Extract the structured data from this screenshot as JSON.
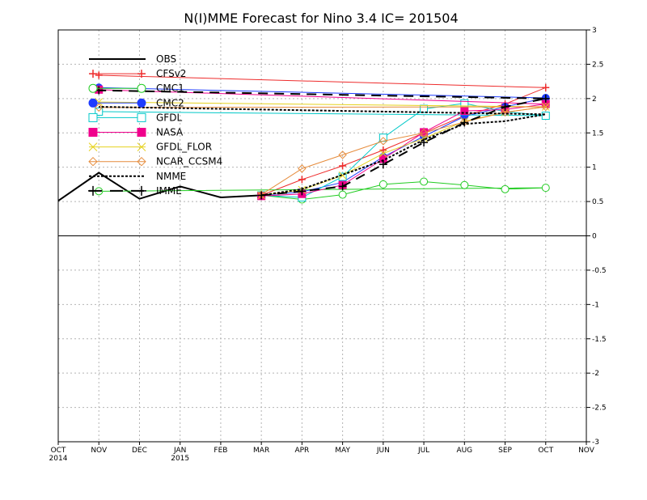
{
  "chart_data": {
    "type": "line",
    "title": "N(I)MME Forecast for Nino 3.4   IC= 201504",
    "x_tick_labels": [
      [
        "OCT",
        "2014"
      ],
      [
        "NOV",
        ""
      ],
      [
        "DEC",
        ""
      ],
      [
        "JAN",
        "2015"
      ],
      [
        "FEB",
        ""
      ],
      [
        "MAR",
        ""
      ],
      [
        "APR",
        ""
      ],
      [
        "MAY",
        ""
      ],
      [
        "JUN",
        ""
      ],
      [
        "JUL",
        ""
      ],
      [
        "AUG",
        ""
      ],
      [
        "SEP",
        ""
      ],
      [
        "OCT",
        ""
      ],
      [
        "NOV",
        ""
      ]
    ],
    "ylim": [
      -3,
      3
    ],
    "y_ticks": [
      -3,
      -2.5,
      -2,
      -1.5,
      -1,
      -0.5,
      0,
      0.5,
      1,
      1.5,
      2,
      2.5,
      3
    ],
    "y_tick_labels": [
      "-3",
      "-2.5",
      "-2",
      "-1.5",
      "-1",
      "-0.5",
      "0",
      "0.5",
      "1",
      "1.5",
      "2",
      "2.5",
      "3"
    ],
    "grid": true,
    "zero_line": true,
    "legend_position": "top-left",
    "series": [
      {
        "name": "OBS",
        "color": "#000000",
        "marker": "none",
        "dash": "solid",
        "width": 2,
        "x": [
          "OCT 2014",
          "NOV",
          "DEC",
          "JAN 2015",
          "FEB",
          "MAR"
        ],
        "values": [
          0.51,
          0.92,
          0.54,
          0.72,
          0.56,
          0.59
        ]
      },
      {
        "name": "CFSv2",
        "color": "#ee2c2c",
        "marker": "plus",
        "dash": "solid",
        "width": 1,
        "x": [
          "MAR",
          "APR",
          "MAY",
          "JUN",
          "JUL",
          "AUG",
          "SEP",
          "OCT",
          "NOV"
        ],
        "values": [
          0.59,
          0.82,
          1.02,
          1.25,
          1.5,
          1.75,
          1.92,
          2.16,
          2.34
        ]
      },
      {
        "name": "CMC1",
        "color": "#22cc22",
        "marker": "circle",
        "dash": "solid",
        "width": 1,
        "x": [
          "MAR",
          "APR",
          "MAY",
          "JUN",
          "JUL",
          "AUG",
          "SEP",
          "OCT",
          "NOV"
        ],
        "values": [
          0.59,
          0.53,
          0.6,
          0.75,
          0.79,
          0.74,
          0.68,
          0.7,
          0.65
        ]
      },
      {
        "name": "CMC2",
        "color": "#1e3cff",
        "marker": "filled-circle",
        "dash": "solid",
        "width": 1,
        "x": [
          "MAR",
          "APR",
          "MAY",
          "JUN",
          "JUL",
          "AUG",
          "SEP",
          "OCT",
          "NOV"
        ],
        "values": [
          0.59,
          0.64,
          0.78,
          1.15,
          1.45,
          1.74,
          1.88,
          2.01,
          2.16
        ]
      },
      {
        "name": "GFDL",
        "color": "#00c8c8",
        "marker": "square",
        "dash": "solid",
        "width": 1,
        "x": [
          "MAR",
          "APR",
          "MAY",
          "JUN",
          "JUL",
          "AUG",
          "SEP",
          "OCT",
          "NOV"
        ],
        "values": [
          0.59,
          0.56,
          0.86,
          1.43,
          1.85,
          1.93,
          1.81,
          1.75,
          1.81
        ]
      },
      {
        "name": "NASA",
        "color": "#f0008c",
        "marker": "filled-square",
        "dash": "solid",
        "width": 1,
        "x": [
          "MAR",
          "APR",
          "MAY",
          "JUN",
          "JUL",
          "AUG",
          "SEP",
          "OCT",
          "NOV"
        ],
        "values": [
          0.58,
          0.61,
          0.74,
          1.12,
          1.51,
          1.82,
          1.84,
          1.92,
          2.13
        ]
      },
      {
        "name": "GFDL_FLOR",
        "color": "#e6d21e",
        "marker": "cross",
        "dash": "solid",
        "width": 1,
        "x": [
          "MAR",
          "APR",
          "MAY",
          "JUN",
          "JUL",
          "AUG",
          "SEP",
          "OCT",
          "NOV"
        ],
        "values": [
          0.59,
          0.67,
          0.88,
          1.2,
          1.42,
          1.67,
          1.8,
          1.88,
          1.95
        ]
      },
      {
        "name": "NCAR_CCSM4",
        "color": "#e68c3c",
        "marker": "diamond",
        "dash": "solid",
        "width": 1,
        "x": [
          "MAR",
          "APR",
          "MAY",
          "JUN",
          "JUL",
          "AUG",
          "SEP",
          "OCT",
          "NOV"
        ],
        "values": [
          0.6,
          0.98,
          1.18,
          1.38,
          1.5,
          1.66,
          1.8,
          1.88,
          1.87
        ]
      },
      {
        "name": "NMME",
        "color": "#000000",
        "marker": "none",
        "dash": "dotted",
        "width": 2,
        "x": [
          "MAR",
          "APR",
          "MAY",
          "JUN",
          "JUL",
          "AUG",
          "SEP",
          "OCT",
          "NOV"
        ],
        "values": [
          0.59,
          0.68,
          0.89,
          1.1,
          1.4,
          1.63,
          1.67,
          1.77,
          1.88
        ]
      },
      {
        "name": "IMME",
        "color": "#000000",
        "marker": "plus",
        "dash": "dashed",
        "width": 2,
        "x": [
          "MAR",
          "APR",
          "MAY",
          "JUN",
          "JUL",
          "AUG",
          "SEP",
          "OCT",
          "NOV"
        ],
        "values": [
          0.59,
          0.65,
          0.72,
          1.04,
          1.36,
          1.65,
          1.88,
          2.0,
          2.12
        ]
      }
    ]
  }
}
